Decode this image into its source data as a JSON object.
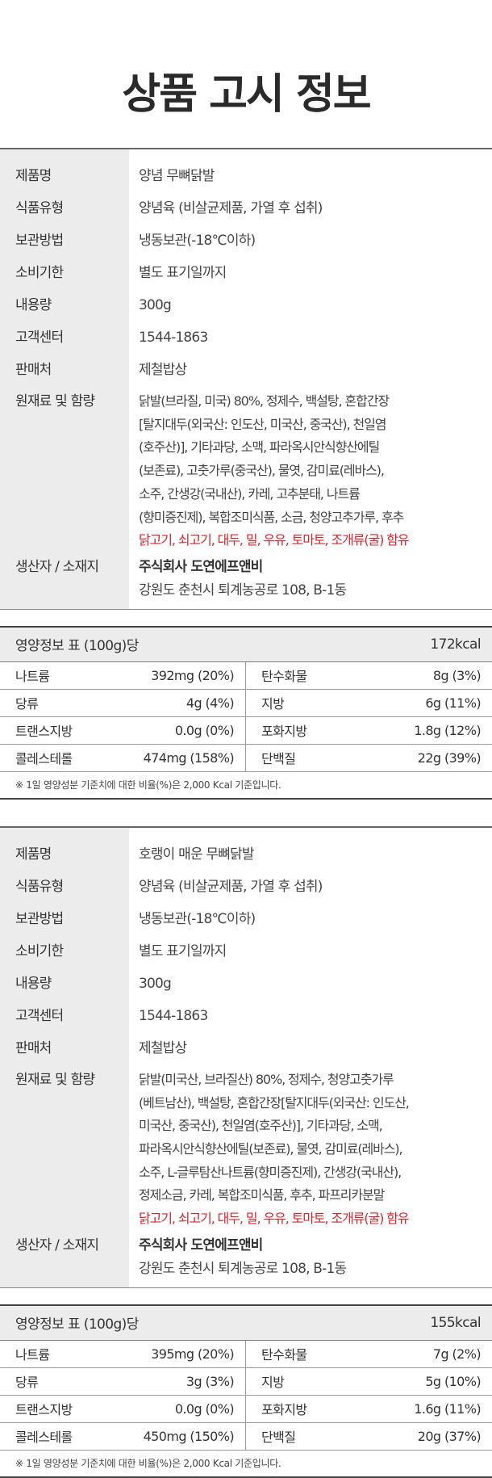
{
  "title": "상품 고시 정보",
  "products": [
    {
      "rows": [
        {
          "label": "제품명",
          "value": "양념 무뼈닭발"
        },
        {
          "label": "식품유형",
          "value": "양념육 (비살균제품, 가열 후 섭취)"
        },
        {
          "label": "보관방법",
          "value": "냉동보관(-18℃이하)"
        },
        {
          "label": "소비기한",
          "value": "별도 표기일까지"
        },
        {
          "label": "내용량",
          "value": "300g"
        },
        {
          "label": "고객센터",
          "value": "1544-1863"
        },
        {
          "label": "판매처",
          "value": "제철밥상"
        }
      ],
      "ingredients_label": "원재료 및 함량",
      "ingredients_lines": [
        "닭발(브라질, 미국) 80%, 정제수, 백설탕, 혼합간장",
        "[탈지대두(외국산: 인도산, 미국산, 중국산), 천일염",
        "(호주산)], 기타과당, 소맥, 파라옥시안식향산에틸",
        "(보존료), 고춧가루(중국산), 물엿, 감미료(레바스),",
        "소주, 간생강(국내산), 카레, 고추분태, 나트륨",
        "(향미증진제), 복합조미식품, 소금, 청양고추가루, 후추"
      ],
      "allergens": "닭고기, 쇠고기, 대두, 밀, 우유, 토마토, 조개류(굴) 함유",
      "producer_label": "생산자 / 소재지",
      "producer_name": "주식회사 도연에프앤비",
      "producer_address": "강원도 춘천시 퇴계농공로 108, B-1동",
      "nutrition": {
        "header": "영양정보 표 (100g)당",
        "kcal": "172kcal",
        "rows": [
          [
            {
              "label": "나트륨",
              "value": "392mg (20%)"
            },
            {
              "label": "탄수화물",
              "value": "8g (3%)"
            }
          ],
          [
            {
              "label": "당류",
              "value": "4g (4%)"
            },
            {
              "label": "지방",
              "value": "6g (11%)"
            }
          ],
          [
            {
              "label": "트랜스지방",
              "value": "0.0g (0%)"
            },
            {
              "label": "포화지방",
              "value": "1.8g (12%)"
            }
          ],
          [
            {
              "label": "콜레스테롤",
              "value": "474mg (158%)"
            },
            {
              "label": "단백질",
              "value": "22g (39%)"
            }
          ]
        ],
        "note": "※ 1일 영양성분 기준치에 대한 비율(%)은 2,000 Kcal 기준입니다."
      }
    },
    {
      "rows": [
        {
          "label": "제품명",
          "value": "호랭이 매운 무뼈닭발"
        },
        {
          "label": "식품유형",
          "value": "양념육 (비살균제품, 가열 후 섭취)"
        },
        {
          "label": "보관방법",
          "value": "냉동보관(-18℃이하)"
        },
        {
          "label": "소비기한",
          "value": "별도 표기일까지"
        },
        {
          "label": "내용량",
          "value": "300g"
        },
        {
          "label": "고객센터",
          "value": "1544-1863"
        },
        {
          "label": "판매처",
          "value": "제철밥상"
        }
      ],
      "ingredients_label": "원재료 및 함량",
      "ingredients_lines": [
        "닭발(미국산, 브라질산) 80%, 정제수, 청양고춧가루",
        "(베트남산), 백설탕, 혼합간장[탈지대두(외국산: 인도산,",
        "미국산, 중국산), 천일염(호주산)], 기타과당, 소맥,",
        "파라옥시안식향산에틸(보존료), 물엿, 감미료(레바스),",
        "소주, L-글루탐산나트륨(향미증진제), 간생강(국내산),",
        "정제소금, 카레, 복합조미식품, 후추, 파프리카분말"
      ],
      "allergens": "닭고기, 쇠고기, 대두, 밀, 우유, 토마토, 조개류(굴) 함유",
      "producer_label": "생산자 / 소재지",
      "producer_name": "주식회사 도연에프앤비",
      "producer_address": "강원도 춘천시 퇴계농공로 108, B-1동",
      "nutrition": {
        "header": "영양정보 표 (100g)당",
        "kcal": "155kcal",
        "rows": [
          [
            {
              "label": "나트륨",
              "value": "395mg (20%)"
            },
            {
              "label": "탄수화물",
              "value": "7g (2%)"
            }
          ],
          [
            {
              "label": "당류",
              "value": "3g (3%)"
            },
            {
              "label": "지방",
              "value": "5g (10%)"
            }
          ],
          [
            {
              "label": "트랜스지방",
              "value": "0.0g (0%)"
            },
            {
              "label": "포화지방",
              "value": "1.6g (11%)"
            }
          ],
          [
            {
              "label": "콜레스테롤",
              "value": "450mg (150%)"
            },
            {
              "label": "단백질",
              "value": "20g (37%)"
            }
          ]
        ],
        "note": "※ 1일 영양성분 기준치에 대한 비율(%)은 2,000 Kcal 기준입니다."
      }
    }
  ],
  "colors": {
    "allergen": "#d7262c",
    "label_bg": "#ececec"
  }
}
